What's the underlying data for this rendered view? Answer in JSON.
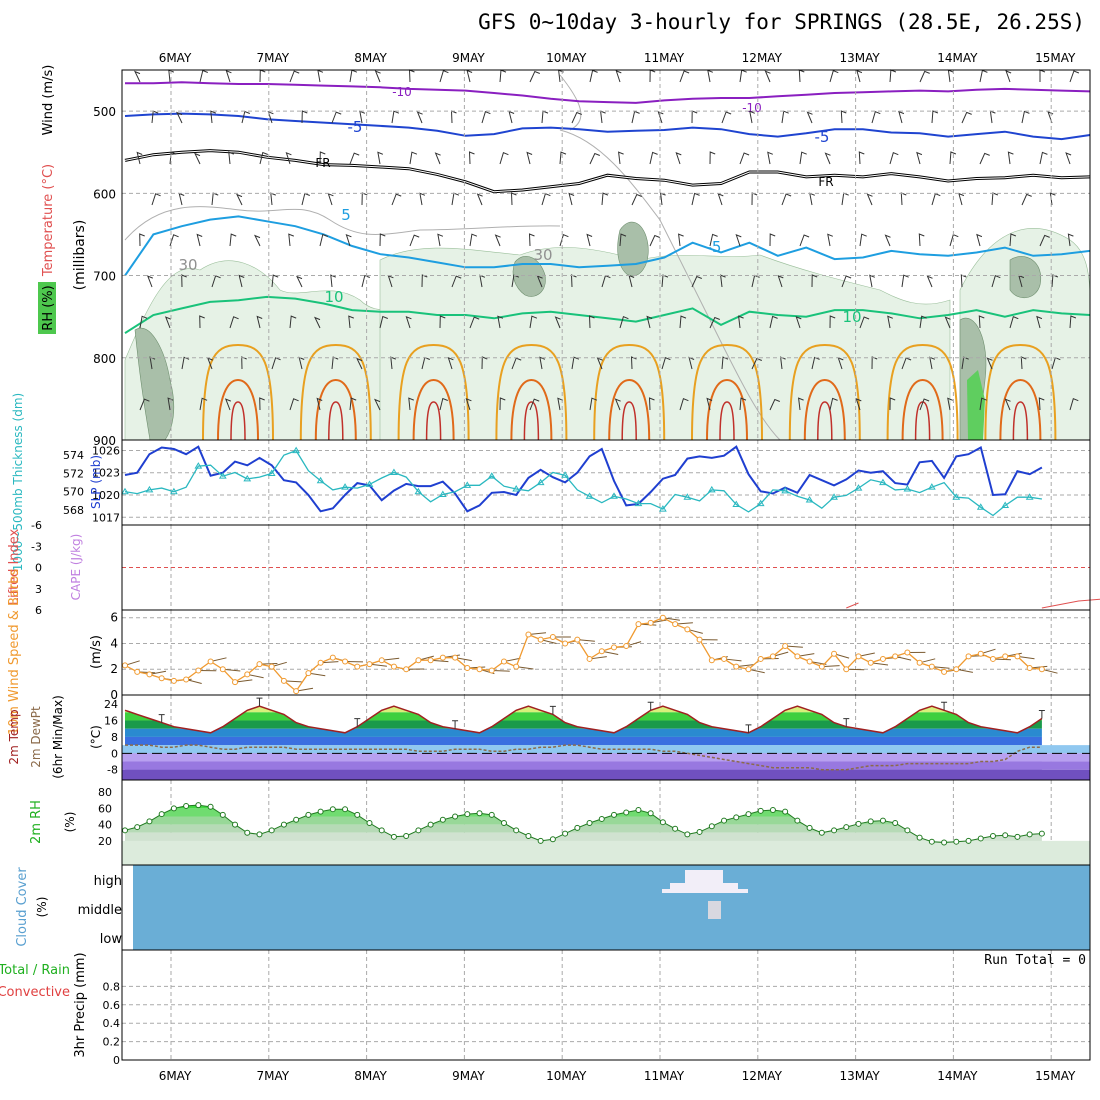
{
  "title": "GFS 0~10day 3-hourly for SPRINGS (28.5E, 26.25S)",
  "days": [
    "6MAY",
    "7MAY",
    "8MAY",
    "9MAY",
    "10MAY",
    "11MAY",
    "12MAY",
    "13MAY",
    "14MAY",
    "15MAY"
  ],
  "colors": {
    "purple": "#8a1fc0",
    "blue5": "#1f44d0",
    "black": "#000000",
    "cyan5": "#1e9ee0",
    "green10": "#19c27a",
    "orange": "#e8a020",
    "darkorange": "#e06a1a",
    "rh": "#cfe6cf",
    "slp": "#1f3fd0",
    "thick": "#2ab8c0",
    "wind10": "#f09a30",
    "cloud": "#6aaed6"
  },
  "chart_data": [
    {
      "panel": "upper-air",
      "type": "heatmap",
      "ylabel_wind": "Wind (m/s)",
      "ylabel_temp": "Temperature (°C)",
      "ylabel_rh": "RH (%)",
      "ylabel_axis": "(millibars)",
      "yticks": [
        "500",
        "600",
        "700",
        "800",
        "900"
      ],
      "ylim": [
        450,
        900
      ],
      "contour_labels": [
        "-10",
        "-10",
        "-5",
        "-5",
        "FR",
        "FR",
        "5",
        "-5",
        "10",
        "10",
        "30",
        "30"
      ],
      "isotherms": [
        {
          "name": "-10",
          "color": "purple",
          "p": [
            466,
            466,
            465,
            466,
            467,
            467,
            468,
            469,
            470,
            471,
            473,
            474,
            475,
            478,
            481,
            485,
            488,
            489,
            490,
            487,
            485,
            484,
            484,
            482,
            480,
            478,
            477,
            476,
            475,
            476,
            474,
            473,
            474,
            475,
            476
          ]
        },
        {
          "name": "-5",
          "color": "blue5",
          "p": [
            506,
            504,
            503,
            504,
            506,
            510,
            512,
            514,
            516,
            518,
            520,
            524,
            530,
            528,
            521,
            520,
            522,
            525,
            524,
            523,
            520,
            522,
            528,
            531,
            527,
            522,
            522,
            526,
            527,
            531,
            528,
            525,
            531,
            534,
            529
          ]
        },
        {
          "name": "FR",
          "color": "black",
          "p": [
            560,
            553,
            550,
            548,
            550,
            556,
            560,
            565,
            566,
            568,
            570,
            577,
            586,
            598,
            596,
            592,
            588,
            578,
            582,
            584,
            590,
            588,
            574,
            574,
            580,
            578,
            580,
            576,
            580,
            585,
            582,
            581,
            578,
            581,
            580
          ]
        },
        {
          "name": "5",
          "color": "cyan5",
          "p": [
            700,
            650,
            640,
            632,
            628,
            634,
            640,
            650,
            664,
            674,
            678,
            684,
            690,
            690,
            686,
            686,
            690,
            688,
            686,
            678,
            660,
            672,
            660,
            676,
            666,
            680,
            678,
            670,
            674,
            676,
            672,
            666,
            676,
            674,
            670
          ]
        },
        {
          "name": "10",
          "color": "green10",
          "p": [
            770,
            748,
            740,
            732,
            730,
            726,
            728,
            734,
            742,
            744,
            744,
            748,
            748,
            752,
            746,
            744,
            748,
            752,
            756,
            748,
            740,
            760,
            744,
            748,
            750,
            742,
            742,
            746,
            752,
            748,
            742,
            750,
            742,
            746,
            748
          ]
        }
      ]
    },
    {
      "panel": "slp-thickness",
      "type": "line",
      "ylabel": "1000~500mb Thickness (dm)",
      "ylabel2": "SLP (mb)",
      "yticks_left": [
        "574",
        "572",
        "570",
        "568"
      ],
      "yticks_right": [
        "1026",
        "1023",
        "1020",
        "1017"
      ],
      "series": [
        {
          "name": "SLP (mb)",
          "color": "slp",
          "values": [
            1022.7,
            1023.0,
            1025.5,
            1026.4,
            1026.2,
            1025.5,
            1026.5,
            1022.6,
            1023.0,
            1024.5,
            1024.0,
            1025.0,
            1024.0,
            1022.0,
            1021.7,
            1020.0,
            1017.8,
            1018.2,
            1020.0,
            1021.6,
            1021.3,
            1019.3,
            1020.6,
            1021.5,
            1021.2,
            1021.2,
            1021.8,
            1020.2,
            1017.8,
            1018.6,
            1020.3,
            1020.4,
            1020.0,
            1022.3,
            1023.4,
            1022.4,
            1021.7,
            1023.0,
            1025.2,
            1026.2,
            1021.9,
            1018.6,
            1018.8,
            1020.4,
            1022.2,
            1022.7,
            1024.9,
            1025.2,
            1025.0,
            1025.3,
            1026.5,
            1022.8,
            1020.5,
            1020.2,
            1021.0,
            1020.3,
            1022.7,
            1022.0,
            1021.3,
            1022.1,
            1023.3,
            1023.0,
            1023.2,
            1021.6,
            1021.4,
            1024.4,
            1024.6,
            1022.3,
            1025.2,
            1025.5,
            1026.4,
            1020.0,
            1020.1,
            1023.2,
            1022.8,
            1023.7
          ]
        },
        {
          "name": "Thickness (dm)",
          "color": "thick",
          "values": [
            570.0,
            569.8,
            570.2,
            570.4,
            570.0,
            570.5,
            572.8,
            572.9,
            571.7,
            572.1,
            571.4,
            571.6,
            572.0,
            574.0,
            574.5,
            572.3,
            571.2,
            570.2,
            570.5,
            570.4,
            570.8,
            571.5,
            572.1,
            571.6,
            570.0,
            568.9,
            569.7,
            570.0,
            570.7,
            570.7,
            571.7,
            570.6,
            570.3,
            570.1,
            571.0,
            572.1,
            571.8,
            570.2,
            569.5,
            568.8,
            569.5,
            569.2,
            568.7,
            568.7,
            568.1,
            569.7,
            569.4,
            569.0,
            570.2,
            570.1,
            568.6,
            567.8,
            568.7,
            570.2,
            570.1,
            569.5,
            569.1,
            568.2,
            569.4,
            569.6,
            570.4,
            571.3,
            571.0,
            570.2,
            570.3,
            569.9,
            570.5,
            571.0,
            569.4,
            569.3,
            568.3,
            567.4,
            568.5,
            569.4,
            569.4,
            569.2
          ]
        }
      ]
    },
    {
      "panel": "lifted-index-cape",
      "type": "line",
      "ylabel": "Lifted Index",
      "ylabel2": "CAPE (J/kg)",
      "yticks": [
        "-6",
        "-3",
        "0",
        "3",
        "6"
      ],
      "ylim": [
        -6,
        6
      ]
    },
    {
      "panel": "wind10m",
      "type": "line",
      "ylabel": "10m Wind Speed & Barbs",
      "ylabel2": "(m/s)",
      "yticks": [
        "0",
        "2",
        "4",
        "6"
      ],
      "ylim": [
        0,
        6.6
      ],
      "series": [
        {
          "name": "10m Wind Speed",
          "color": "wind10",
          "values": [
            2.3,
            1.8,
            1.6,
            1.3,
            1.1,
            1.2,
            1.9,
            2.6,
            2.0,
            1.0,
            1.6,
            2.4,
            2.2,
            1.1,
            0.3,
            1.7,
            2.5,
            2.9,
            2.6,
            2.2,
            2.4,
            2.7,
            2.2,
            2.0,
            2.7,
            2.7,
            2.9,
            2.9,
            2.1,
            2.0,
            1.9,
            2.6,
            2.2,
            4.7,
            4.3,
            4.5,
            4.0,
            4.3,
            2.8,
            3.4,
            3.7,
            3.8,
            5.5,
            5.6,
            6.0,
            5.5,
            5.1,
            4.3,
            2.7,
            2.8,
            2.2,
            2.0,
            2.8,
            3.0,
            3.8,
            3.0,
            2.6,
            2.2,
            3.2,
            2.0,
            3.0,
            2.5,
            2.8,
            3.0,
            3.3,
            2.5,
            2.2,
            1.8,
            2.0,
            3.0,
            3.2,
            2.8,
            3.0,
            3.0,
            2.1,
            2.0
          ]
        }
      ]
    },
    {
      "panel": "temperature",
      "type": "area",
      "ylabel": "2m Temp",
      "ylabel2": "2m DewPt",
      "ylabel3": "(6hr Min/Max)",
      "ylabel4": "(°C)",
      "yticks": [
        "24",
        "16",
        "8",
        "0",
        "-8"
      ],
      "ylim": [
        -13,
        26
      ],
      "series": [
        {
          "name": "2m Temp",
          "values": [
            21,
            19,
            17,
            15,
            13,
            12,
            11,
            10,
            13,
            17,
            21,
            23,
            21,
            19,
            15,
            13,
            12,
            11,
            10,
            13,
            17,
            21,
            23,
            21,
            19,
            15,
            13,
            12,
            11,
            10,
            13,
            17,
            21,
            23,
            21,
            19,
            15,
            13,
            12,
            11,
            10,
            13,
            17,
            21,
            23,
            21,
            19,
            15,
            13,
            12,
            11,
            10,
            13,
            17,
            21,
            23,
            21,
            19,
            15,
            13,
            12,
            11,
            10,
            13,
            17,
            21,
            23,
            21,
            19,
            15,
            13,
            12,
            11,
            10,
            13,
            17
          ]
        },
        {
          "name": "2m DewPt",
          "values": [
            4,
            4,
            4,
            3,
            3,
            4,
            4,
            3,
            2,
            2,
            3,
            3,
            3,
            3,
            2,
            2,
            2,
            2,
            2,
            2,
            2,
            2,
            2,
            2,
            1,
            1,
            1,
            2,
            2,
            2,
            1,
            1,
            2,
            2,
            3,
            3,
            4,
            4,
            3,
            2,
            2,
            2,
            2,
            2,
            1,
            1,
            0,
            -1,
            -2,
            -3,
            -4,
            -5,
            -6,
            -7,
            -7,
            -7,
            -7,
            -8,
            -8,
            -8,
            -7,
            -6,
            -6,
            -6,
            -5,
            -5,
            -5,
            -5,
            -5,
            -5,
            -4,
            -4,
            -3,
            1,
            3,
            3
          ]
        }
      ]
    },
    {
      "panel": "rh2m",
      "type": "area",
      "ylabel": "2m RH",
      "ylabel2": "(%)",
      "yticks": [
        "20",
        "40",
        "60",
        "80"
      ],
      "ylim": [
        10,
        90
      ],
      "series": [
        {
          "name": "2m RH",
          "values": [
            33,
            37,
            44,
            53,
            60,
            63,
            64,
            62,
            52,
            40,
            30,
            28,
            33,
            40,
            46,
            52,
            56,
            59,
            59,
            52,
            42,
            33,
            25,
            26,
            33,
            40,
            46,
            50,
            53,
            54,
            52,
            42,
            33,
            26,
            20,
            22,
            29,
            36,
            42,
            47,
            52,
            55,
            58,
            54,
            43,
            35,
            28,
            31,
            38,
            45,
            49,
            53,
            57,
            58,
            56,
            45,
            36,
            30,
            33,
            37,
            41,
            44,
            45,
            42,
            33,
            24,
            19,
            18,
            19,
            20,
            23,
            26,
            27,
            25,
            28,
            29
          ]
        }
      ]
    },
    {
      "panel": "cloud",
      "type": "heatmap",
      "ylabel": "Cloud Cover",
      "ylabel2": "(%)",
      "yticks": [
        "high",
        "middle",
        "low"
      ]
    },
    {
      "panel": "precip",
      "type": "bar",
      "ylabel": "3hr Precip (mm)",
      "ylabel2": "Total / Rain",
      "ylabel3": "Convective",
      "yticks": [
        "0",
        "0.2",
        "0.4",
        "0.6",
        "0.8"
      ],
      "ylim": [
        0,
        1
      ],
      "run_total": "Run Total = 0"
    }
  ]
}
